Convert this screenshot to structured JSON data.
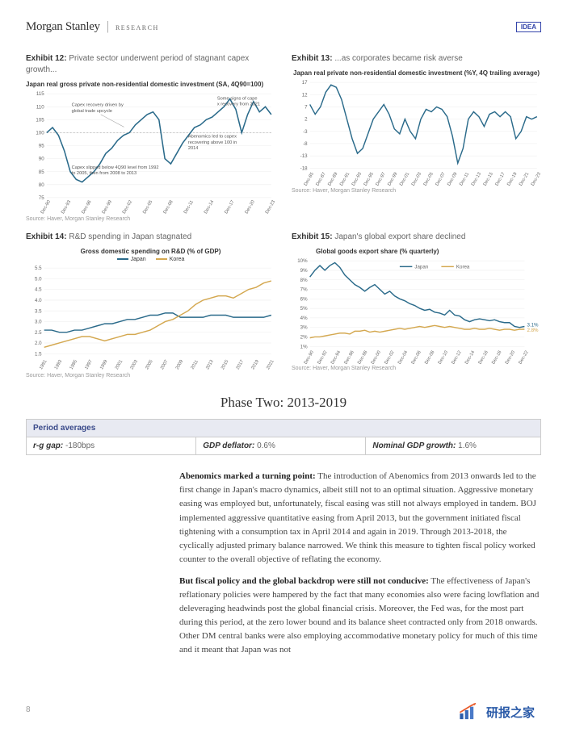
{
  "header": {
    "brand": "Morgan Stanley",
    "sub": "RESEARCH",
    "idea": "IDEA"
  },
  "exhibit12": {
    "label": "Exhibit 12:",
    "title": "Private sector underwent period of stagnant capex growth...",
    "subtitle": "Japan real gross private non-residential domestic investment  (SA, 4Q90=100)",
    "source": "Source: Haver, Morgan Stanley Research",
    "color": "#2a6a8a",
    "annotations": {
      "a1": "Some signs of capex recovery from 2021",
      "a2": "Capex recovery driven by global trade upcycle",
      "a3": "Abenomics led to capex recovering above 100 in 2014",
      "a4": "Capex slipped below 4Q90 level from 1992 to 2005, then from 2008 to 2013"
    },
    "ylim": [
      75,
      115
    ],
    "yticks": [
      75,
      80,
      85,
      90,
      95,
      100,
      105,
      110,
      115
    ],
    "xticks": [
      "Dec-90",
      "Dec-93",
      "Dec-96",
      "Dec-99",
      "Dec-02",
      "Dec-05",
      "Dec-08",
      "Dec-11",
      "Dec-14",
      "Dec-17",
      "Dec-20",
      "Dec-23"
    ],
    "grid_color": "#ddd",
    "series": [
      100,
      102,
      99,
      93,
      85,
      82,
      81,
      83,
      85,
      88,
      92,
      94,
      97,
      99,
      100,
      103,
      105,
      107,
      108,
      105,
      90,
      88,
      92,
      96,
      99,
      102,
      103,
      105,
      106,
      108,
      110,
      113,
      109,
      100,
      107,
      112,
      108,
      110,
      107
    ]
  },
  "exhibit13": {
    "label": "Exhibit 13:",
    "title": "...as corporates became risk averse",
    "subtitle": "Japan real private non-residential domestic investment (%Y, 4Q trailing average)",
    "source": "Source: Haver, Morgan Stanley Research",
    "color": "#2a6a8a",
    "ylim": [
      -18,
      17
    ],
    "yticks": [
      -18,
      -13,
      -8,
      -3,
      2,
      7,
      12,
      17
    ],
    "xticks": [
      "Dec-85",
      "Dec-87",
      "Dec-89",
      "Dec-91",
      "Dec-93",
      "Dec-95",
      "Dec-97",
      "Dec-99",
      "Dec-01",
      "Dec-03",
      "Dec-05",
      "Dec-07",
      "Dec-09",
      "Dec-11",
      "Dec-13",
      "Dec-15",
      "Dec-17",
      "Dec-19",
      "Dec-21",
      "Dec-23"
    ],
    "series": [
      8,
      4,
      7,
      13,
      16,
      15,
      10,
      2,
      -6,
      -12,
      -10,
      -4,
      2,
      5,
      8,
      4,
      -2,
      -4,
      2,
      -3,
      -6,
      2,
      6,
      5,
      7,
      6,
      3,
      -5,
      -16,
      -10,
      2,
      5,
      3,
      -1,
      4,
      5,
      3,
      5,
      3,
      -6,
      -3,
      3,
      2,
      3
    ]
  },
  "exhibit14": {
    "label": "Exhibit 14:",
    "title": "R&D spending in Japan stagnated",
    "subtitle": "Gross domestic spending on R&D (% of GDP)",
    "source": "Source: Haver, Morgan Stanley Research",
    "colors": {
      "japan": "#2a6a8a",
      "korea": "#d4a850"
    },
    "legend": {
      "japan": "Japan",
      "korea": "Korea"
    },
    "ylim": [
      1.5,
      5.5
    ],
    "yticks": [
      1.5,
      2.0,
      2.5,
      3.0,
      3.5,
      4.0,
      4.5,
      5.0,
      5.5
    ],
    "xticks": [
      "1991",
      "1993",
      "1995",
      "1997",
      "1999",
      "2001",
      "2003",
      "2005",
      "2007",
      "2009",
      "2011",
      "2013",
      "2015",
      "2017",
      "2019",
      "2021"
    ],
    "japan": [
      2.6,
      2.6,
      2.5,
      2.5,
      2.6,
      2.6,
      2.7,
      2.8,
      2.9,
      2.9,
      3.0,
      3.1,
      3.1,
      3.2,
      3.3,
      3.3,
      3.4,
      3.4,
      3.2,
      3.2,
      3.2,
      3.2,
      3.3,
      3.3,
      3.3,
      3.2,
      3.2,
      3.2,
      3.2,
      3.2,
      3.3
    ],
    "korea": [
      1.8,
      1.9,
      2.0,
      2.1,
      2.2,
      2.3,
      2.3,
      2.2,
      2.1,
      2.2,
      2.3,
      2.4,
      2.4,
      2.5,
      2.6,
      2.8,
      3.0,
      3.1,
      3.3,
      3.5,
      3.8,
      4.0,
      4.1,
      4.2,
      4.2,
      4.1,
      4.3,
      4.5,
      4.6,
      4.8,
      4.9
    ]
  },
  "exhibit15": {
    "label": "Exhibit 15:",
    "title": "Japan's global export share declined",
    "subtitle": "Global goods export share (% quarterly)",
    "source": "Source: Haver, Morgan Stanley Research",
    "colors": {
      "japan": "#2a6a8a",
      "korea": "#d4a850"
    },
    "legend": {
      "japan": "Japan",
      "korea": "Korea"
    },
    "ylim": [
      1,
      10
    ],
    "yticks": [
      1,
      2,
      3,
      4,
      5,
      6,
      7,
      8,
      9,
      10
    ],
    "xticks": [
      "Dec-90",
      "Dec-92",
      "Dec-94",
      "Dec-96",
      "Dec-98",
      "Dec-00",
      "Dec-02",
      "Dec-04",
      "Dec-06",
      "Dec-08",
      "Dec-10",
      "Dec-12",
      "Dec-14",
      "Dec-16",
      "Dec-18",
      "Dec-20",
      "Dec-22"
    ],
    "end_labels": {
      "japan": "3.1%",
      "korea": "2.8%"
    },
    "japan": [
      8.3,
      9.0,
      9.5,
      9.0,
      9.5,
      9.8,
      9.3,
      8.5,
      8.0,
      7.5,
      7.2,
      6.8,
      7.2,
      7.5,
      7.0,
      6.5,
      6.8,
      6.3,
      6.0,
      5.8,
      5.5,
      5.3,
      5.0,
      4.8,
      4.9,
      4.6,
      4.5,
      4.3,
      4.8,
      4.3,
      4.2,
      3.8,
      3.6,
      3.8,
      3.9,
      3.8,
      3.7,
      3.8,
      3.6,
      3.5,
      3.5,
      3.1,
      3.0,
      3.1
    ],
    "korea": [
      1.9,
      2.0,
      2.0,
      2.1,
      2.2,
      2.3,
      2.4,
      2.4,
      2.3,
      2.6,
      2.6,
      2.7,
      2.5,
      2.6,
      2.5,
      2.6,
      2.7,
      2.8,
      2.9,
      2.8,
      2.9,
      3.0,
      3.1,
      3.0,
      3.1,
      3.2,
      3.1,
      3.0,
      3.1,
      3.0,
      2.9,
      2.8,
      2.8,
      2.9,
      2.8,
      2.8,
      2.9,
      2.8,
      2.7,
      2.8,
      2.8,
      2.7,
      2.8,
      2.8
    ]
  },
  "section": {
    "title": "Phase Two: 2013-2019"
  },
  "period_table": {
    "header": "Period averages",
    "cells": [
      {
        "label": "r-g gap:",
        "value": "-180bps"
      },
      {
        "label": "GDP deflator:",
        "value": "0.6%"
      },
      {
        "label": "Nominal GDP growth:",
        "value": "1.6%"
      }
    ]
  },
  "body": {
    "p1_bold": "Abenomics marked a turning point:",
    "p1": " The introduction of Abenomics from 2013 onwards led to the first change in Japan's macro dynamics, albeit still not to an optimal situation. Aggressive monetary easing was employed but, unfortunately, fiscal easing was still not always employed in tandem. BOJ implemented aggressive quantitative easing from April 2013, but the government initiated fiscal tightening with a consumption tax in April 2014 and again in 2019. Through 2013-2018, the cyclically adjusted primary balance narrowed. We think this measure to tighten fiscal policy worked counter to the overall objective of reflating the economy.",
    "p2_bold": "But fiscal policy and the global backdrop were still not conducive:",
    "p2": " The effectiveness of Japan's reflationary policies were hampered by the fact that many economies also were facing lowflation and deleveraging headwinds post the global financial crisis. Moreover, the Fed was, for the most part during this period, at the zero lower bound and its balance sheet contracted only from 2018 onwards. Other DM central banks were also employing accommodative monetary policy for much of this time and it meant that Japan was not"
  },
  "page": "8",
  "watermark": "研报之家"
}
